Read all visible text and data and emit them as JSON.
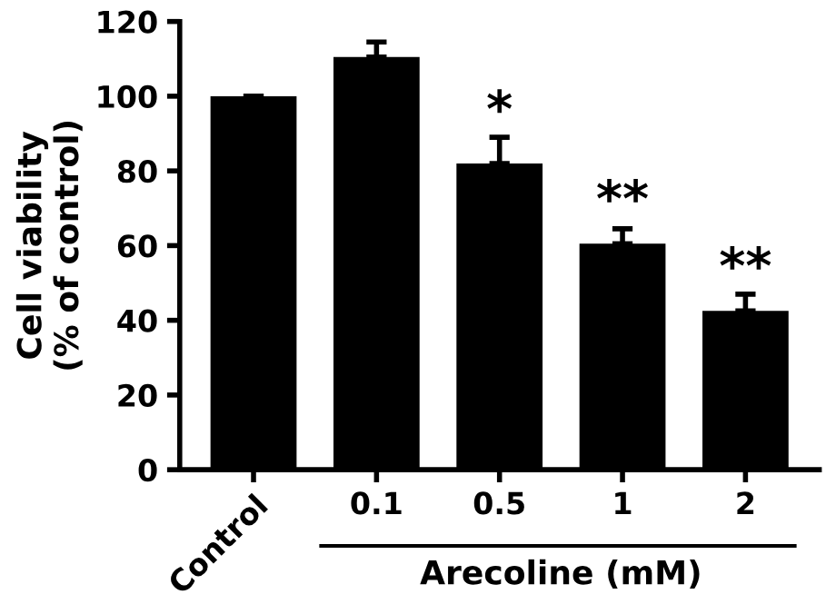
{
  "chart_data": {
    "type": "bar",
    "categories": [
      "Control",
      "0.1",
      "0.5",
      "1",
      "2"
    ],
    "values": [
      100,
      110.5,
      82,
      60.5,
      42.5
    ],
    "errors": [
      null,
      4,
      7,
      4,
      4.5
    ],
    "color": "#000000",
    "ylabel": "Cell viability\n(% of control)",
    "xlabel": "Arecoline (mM)",
    "ylim": [
      0,
      120
    ],
    "yticks": [
      0,
      20,
      40,
      60,
      80,
      100,
      120
    ],
    "grid": false,
    "annotations": [
      {
        "text": "*",
        "x": "0.5",
        "y": 89
      },
      {
        "text": "**",
        "x": "1",
        "y": 65
      },
      {
        "text": "**",
        "x": "2",
        "y": 47
      }
    ]
  }
}
